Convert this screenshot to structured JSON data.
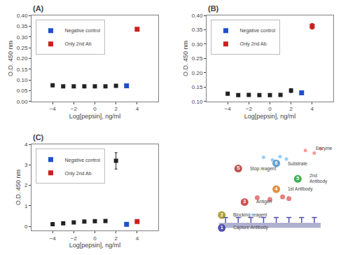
{
  "chart_data": [
    {
      "type": "scatter",
      "title": "(A)",
      "x_label": "Log[pepsin], ng/ml",
      "y_label": "O.D. 450 nm",
      "xlim": [
        -6,
        6
      ],
      "xticks": [
        -4,
        -2,
        0,
        2,
        4
      ],
      "ylim": [
        0.0,
        0.4
      ],
      "yticks": [
        {
          "value": 0.0,
          "label": "0.00"
        },
        0.05,
        {
          "value": 0.1,
          "label": "0.10"
        },
        0.15,
        {
          "value": 0.2,
          "label": "0.20"
        },
        0.25,
        {
          "value": 0.3,
          "label": "0.30"
        },
        0.35,
        {
          "value": 0.4,
          "label": "0.40"
        }
      ],
      "grid": false,
      "legend": "upper left",
      "series": [
        {
          "color": "#222222",
          "marker": "square",
          "x": [
            -4,
            -3,
            -2,
            -1,
            0,
            1,
            2
          ],
          "values": [
            0.075,
            0.07,
            0.07,
            0.07,
            0.07,
            0.07,
            0.073
          ],
          "errors": [
            0.003,
            0.002,
            0.002,
            0.002,
            0.002,
            0.002,
            0.003
          ]
        },
        {
          "name": "Negative control",
          "color": "#1f4fcc",
          "marker": "square",
          "x": [
            3
          ],
          "values": [
            0.073
          ]
        },
        {
          "name": "Only 2nd Ab",
          "color": "#cc1f1f",
          "marker": "square",
          "x": [
            4
          ],
          "values": [
            0.336
          ]
        }
      ]
    },
    {
      "type": "scatter",
      "title": "(B)",
      "x_label": "Log[pepsin], ng/ml",
      "y_label": "O.D. 450 nm",
      "xlim": [
        -6,
        6
      ],
      "xticks": [
        -4,
        -2,
        0,
        2,
        4
      ],
      "ylim": [
        0.1,
        0.4
      ],
      "yticks": [
        {
          "value": 0.1,
          "label": "0.10"
        },
        0.15,
        {
          "value": 0.2,
          "label": "0.20"
        },
        0.25,
        {
          "value": 0.3,
          "label": "0.30"
        },
        0.35,
        {
          "value": 0.4,
          "label": "0.40"
        }
      ],
      "grid": false,
      "legend": "upper left",
      "series": [
        {
          "color": "#222222",
          "marker": "square",
          "x": [
            -4,
            -3,
            -2,
            -1,
            0,
            1
          ],
          "values": [
            0.127,
            0.122,
            0.123,
            0.122,
            0.122,
            0.123
          ],
          "errors": [
            0.003,
            0.002,
            0.002,
            0.002,
            0.002,
            0.002
          ]
        },
        {
          "color": "#222222",
          "marker": "square",
          "x": [
            2
          ],
          "values": [
            0.138
          ],
          "errors": [
            0.007
          ]
        },
        {
          "name": "Negative control",
          "color": "#1f4fcc",
          "marker": "square",
          "x": [
            3
          ],
          "values": [
            0.13
          ]
        },
        {
          "name": "Only 2nd Ab",
          "color": "#cc1f1f",
          "marker": "square",
          "x": [
            4
          ],
          "values": [
            0.362
          ],
          "errors": [
            0.01
          ]
        }
      ]
    },
    {
      "type": "scatter",
      "title": "(C)",
      "x_label": "Log[pepsin], ng/ml",
      "y_label": "O.D. 450 nm",
      "xlim": [
        -6,
        6
      ],
      "xticks": [
        -4,
        -2,
        0,
        2,
        4
      ],
      "ylim": [
        -0.2,
        4.0
      ],
      "yticks": [
        0,
        1,
        2,
        3,
        4
      ],
      "grid": false,
      "legend": "upper left",
      "series": [
        {
          "color": "#222222",
          "marker": "square",
          "x": [
            -4,
            -3,
            -2,
            -1,
            0,
            1
          ],
          "values": [
            0.11,
            0.15,
            0.19,
            0.24,
            0.25,
            0.26
          ],
          "errors": [
            0.01,
            0.01,
            0.02,
            0.02,
            0.02,
            0.02
          ]
        },
        {
          "color": "#222222",
          "marker": "square",
          "x": [
            2
          ],
          "values": [
            3.2
          ],
          "errors": [
            0.4
          ]
        },
        {
          "name": "Negative control",
          "color": "#1f4fcc",
          "marker": "square",
          "x": [
            3
          ],
          "values": [
            0.1
          ]
        },
        {
          "name": "Only 2nd Ab",
          "color": "#cc1f1f",
          "marker": "square",
          "x": [
            4
          ],
          "values": [
            0.24
          ]
        }
      ]
    },
    {
      "type": "diagram",
      "badges": [
        "1",
        "2",
        "3",
        "4",
        "5",
        "6",
        "S"
      ],
      "colors": [
        "#5050b0",
        "#b0a030",
        "#d05050",
        "#e09040",
        "#40b050",
        "#60a0d0",
        "#c05050"
      ],
      "annotations": [
        "Capture Antibody",
        "Blocking reagent",
        "Antigen",
        "1st Antibody",
        "2nd\nAntibody",
        "Substrate",
        "Stop reagent",
        "Enzyme"
      ]
    }
  ]
}
